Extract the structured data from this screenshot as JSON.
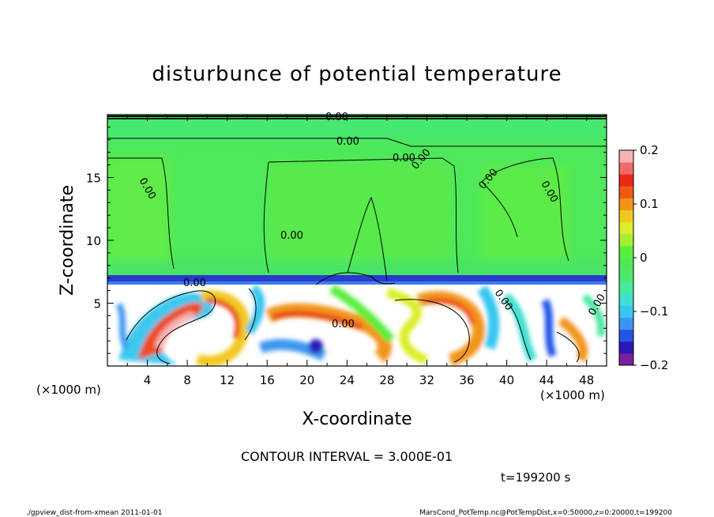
{
  "chart_data": {
    "type": "heatmap",
    "title": "disturbunce of potential temperature",
    "xlabel": "X-coordinate",
    "ylabel": "Z-coordinate",
    "x_unit_left": "(×1000 m)",
    "x_unit_right": "(×1000 m)",
    "xlim": [
      0,
      50
    ],
    "ylim": [
      0,
      20
    ],
    "x_ticks": [
      "4",
      "8",
      "12",
      "16",
      "20",
      "24",
      "28",
      "32",
      "36",
      "40",
      "44",
      "48"
    ],
    "y_ticks": [
      "5",
      "10",
      "15"
    ],
    "contour_labels": [
      "0.00",
      "0.00",
      "0.00",
      "0.00",
      "0.00",
      "0.00",
      "0.00",
      "0.00",
      "0.00",
      "0.00",
      "0.00",
      "0.00"
    ],
    "colorbar": {
      "ticks": [
        "0.2",
        "0.1",
        "0",
        "−0.1",
        "−0.2"
      ],
      "range": [
        -0.2,
        0.2
      ],
      "colors": [
        "#7a1fa2",
        "#2a1ab8",
        "#2454e6",
        "#3c96ef",
        "#37c6ef",
        "#3fe0d0",
        "#48e8a0",
        "#4ee870",
        "#50e858",
        "#5aee40",
        "#a8ee30",
        "#dcee2c",
        "#f2c820",
        "#f2941a",
        "#ee5a16",
        "#e82a14",
        "#f06a6a",
        "#f7b4b4"
      ]
    },
    "contour_interval": "CONTOUR INTERVAL = 3.000E-01",
    "time": "t=199200 s"
  },
  "footer": {
    "left": "./gpview_dist-from-xmean  2011-01-01",
    "right": "MarsCond_PotTemp.nc@PotTempDist,x=0:50000,z=0:20000,t=199200"
  }
}
